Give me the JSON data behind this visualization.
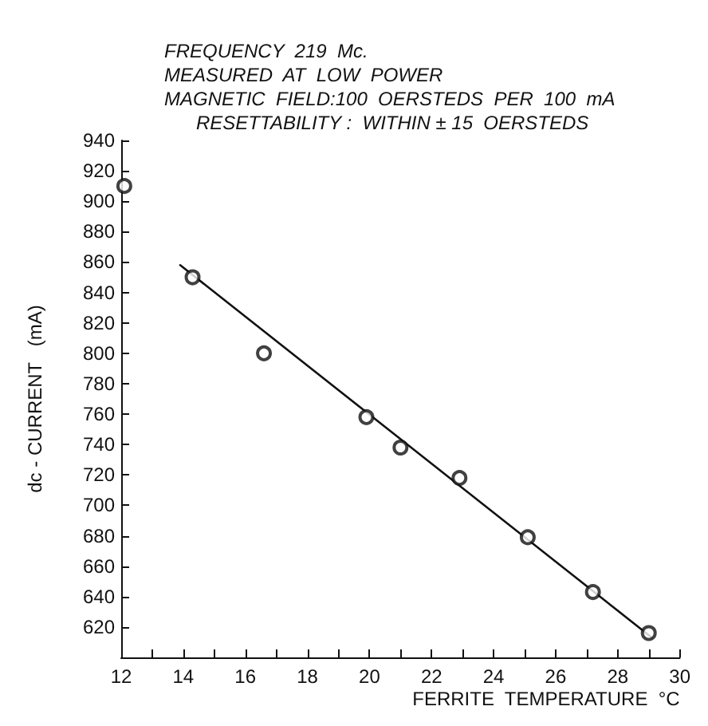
{
  "chart_data": {
    "type": "scatter",
    "annotations": [
      "FREQUENCY  219  Mc.",
      "MEASURED  AT  LOW  POWER",
      "MAGNETIC  FIELD:100  OERSTEDS  PER  100  mA",
      "RESETTABILITY :  WITHIN ± 15  OERSTEDS"
    ],
    "xlabel": "FERRITE  TEMPERATURE  °C",
    "ylabel": "dc - CURRENT   (mA)",
    "x": [
      12.1,
      14.3,
      16.6,
      19.9,
      21.0,
      22.9,
      25.1,
      27.2,
      29.0
    ],
    "series": [
      {
        "color": "#111111",
        "marker": "circle",
        "values": [
          910,
          850,
          800,
          758,
          738,
          718,
          679,
          643,
          616
        ]
      },
      {
        "type": "line",
        "color": "#111111",
        "marker": "none",
        "line_style": "solid",
        "x": [
          13.9,
          29.1
        ],
        "values": [
          858,
          613
        ]
      }
    ],
    "xlim": [
      12,
      30
    ],
    "ylim": [
      600,
      940
    ],
    "xticks": [
      12,
      {
        "value": 13,
        "label": null
      },
      14,
      {
        "value": 15,
        "label": null
      },
      16,
      {
        "value": 17,
        "label": null
      },
      18,
      {
        "value": 19,
        "label": null
      },
      20,
      {
        "value": 21,
        "label": null
      },
      22,
      {
        "value": 23,
        "label": null
      },
      24,
      {
        "value": 25,
        "label": null
      },
      26,
      {
        "value": 27,
        "label": null
      },
      28,
      {
        "value": 29,
        "label": null
      },
      30
    ],
    "yticks": [
      620,
      640,
      660,
      680,
      700,
      720,
      740,
      760,
      780,
      800,
      820,
      840,
      860,
      880,
      900,
      920,
      940
    ],
    "grid": false
  }
}
